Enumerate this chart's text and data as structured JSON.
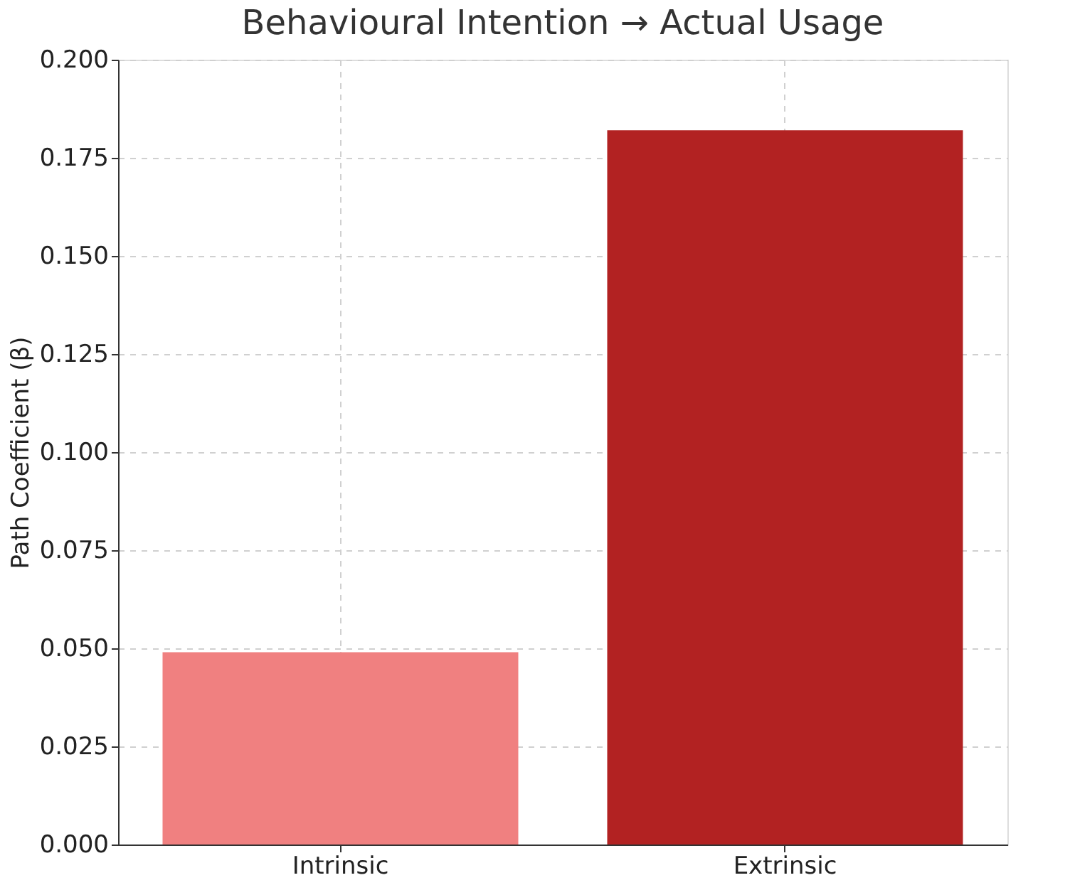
{
  "chart_data": {
    "type": "bar",
    "title": "Behavioural Intention → Actual Usage",
    "ylabel": "Path Coefficient (β)",
    "categories": [
      "Intrinsic",
      "Extrinsic"
    ],
    "values": [
      0.049,
      0.182
    ],
    "colors": [
      "#f08080",
      "#b22222"
    ],
    "ylim": [
      0,
      0.2
    ],
    "yticks": [
      {
        "value": 0,
        "label": "0.000"
      },
      {
        "value": 0.025,
        "label": "0.025"
      },
      {
        "value": 0.05,
        "label": "0.050"
      },
      {
        "value": 0.075,
        "label": "0.075"
      },
      {
        "value": 0.1,
        "label": "0.100"
      },
      {
        "value": 0.125,
        "label": "0.125"
      },
      {
        "value": 0.15,
        "label": "0.150"
      },
      {
        "value": 0.175,
        "label": "0.175"
      },
      {
        "value": 0.2,
        "label": "0.200"
      }
    ],
    "grid": true
  }
}
